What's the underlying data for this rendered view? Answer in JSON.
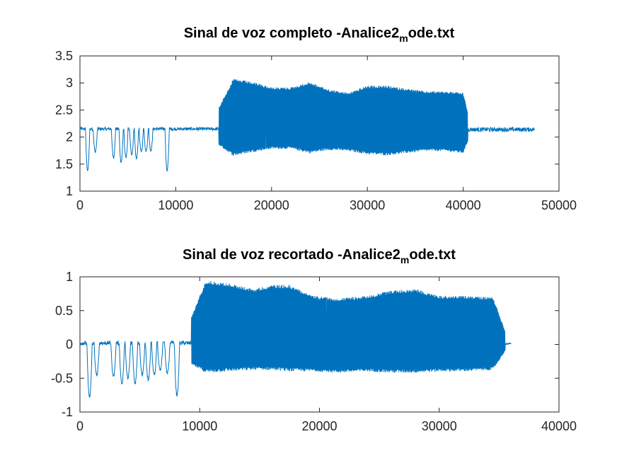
{
  "chart_data": [
    {
      "type": "line",
      "title_main": "Sinal de voz completo -Analice2",
      "title_sub": "m",
      "title_rest": "ode.txt",
      "xlim": [
        0,
        50000
      ],
      "ylim": [
        1,
        3.5
      ],
      "xticks": [
        0,
        10000,
        20000,
        30000,
        40000,
        50000
      ],
      "yticks": [
        1,
        1.5,
        2,
        2.5,
        3,
        3.5
      ],
      "xtick_labels": [
        "0",
        "10000",
        "20000",
        "30000",
        "40000",
        "50000"
      ],
      "ytick_labels": [
        "1",
        "1.5",
        "2",
        "2.5",
        "3",
        "3.5"
      ],
      "grid": false,
      "color": "#0072bd",
      "signal": {
        "x_end": 47500,
        "baseline": 2.15,
        "noise": 0.03,
        "dips": [
          [
            800,
            1.38
          ],
          [
            1600,
            1.72
          ],
          [
            3500,
            1.62
          ],
          [
            4300,
            1.53
          ],
          [
            4800,
            1.62
          ],
          [
            5400,
            1.68
          ],
          [
            5900,
            1.6
          ],
          [
            6400,
            1.72
          ],
          [
            6900,
            1.74
          ],
          [
            7400,
            1.75
          ],
          [
            9100,
            1.38
          ]
        ],
        "burst_start": 14500,
        "burst_end": 40500,
        "burst_envelope": [
          [
            14500,
            2.55,
            1.85
          ],
          [
            16000,
            3.08,
            1.65
          ],
          [
            18000,
            3.02,
            1.72
          ],
          [
            20000,
            2.92,
            1.78
          ],
          [
            22000,
            2.92,
            1.78
          ],
          [
            24000,
            3.02,
            1.7
          ],
          [
            26000,
            2.88,
            1.76
          ],
          [
            28000,
            2.82,
            1.74
          ],
          [
            30000,
            2.95,
            1.68
          ],
          [
            32000,
            2.95,
            1.66
          ],
          [
            34000,
            2.9,
            1.7
          ],
          [
            36000,
            2.85,
            1.74
          ],
          [
            38000,
            2.85,
            1.74
          ],
          [
            40000,
            2.82,
            1.7
          ],
          [
            40500,
            2.45,
            1.92
          ]
        ],
        "tail_end": 47500,
        "tail_baseline": 2.14,
        "tail_noise": 0.04
      }
    },
    {
      "type": "line",
      "title_main": "Sinal de voz recortado -Analice2",
      "title_sub": "m",
      "title_rest": "ode.txt",
      "xlim": [
        0,
        40000
      ],
      "ylim": [
        -1,
        1
      ],
      "xticks": [
        0,
        10000,
        20000,
        30000,
        40000
      ],
      "yticks": [
        -1,
        -0.5,
        0,
        0.5,
        1
      ],
      "xtick_labels": [
        "0",
        "10000",
        "20000",
        "30000",
        "40000"
      ],
      "ytick_labels": [
        "-1",
        "-0.5",
        "0",
        "0.5",
        "1"
      ],
      "grid": false,
      "color": "#0072bd",
      "signal": {
        "x_end": 36000,
        "baseline": 0.02,
        "noise": 0.03,
        "dips": [
          [
            800,
            -0.78
          ],
          [
            1400,
            -0.45
          ],
          [
            2800,
            -0.48
          ],
          [
            3500,
            -0.58
          ],
          [
            4000,
            -0.5
          ],
          [
            4600,
            -0.58
          ],
          [
            5200,
            -0.45
          ],
          [
            5700,
            -0.52
          ],
          [
            6200,
            -0.45
          ],
          [
            6700,
            -0.38
          ],
          [
            7300,
            -0.42
          ],
          [
            8100,
            -0.76
          ]
        ],
        "burst_start": 9300,
        "burst_end": 35500,
        "burst_envelope": [
          [
            9300,
            0.4,
            -0.3
          ],
          [
            10500,
            0.95,
            -0.42
          ],
          [
            12500,
            0.9,
            -0.4
          ],
          [
            14500,
            0.82,
            -0.38
          ],
          [
            16000,
            0.88,
            -0.38
          ],
          [
            17500,
            0.88,
            -0.4
          ],
          [
            19500,
            0.72,
            -0.4
          ],
          [
            21500,
            0.68,
            -0.42
          ],
          [
            24000,
            0.72,
            -0.4
          ],
          [
            26000,
            0.8,
            -0.42
          ],
          [
            28000,
            0.82,
            -0.42
          ],
          [
            30000,
            0.72,
            -0.4
          ],
          [
            32000,
            0.72,
            -0.4
          ],
          [
            34500,
            0.7,
            -0.38
          ],
          [
            35500,
            0.2,
            -0.1
          ]
        ],
        "tail_end": 36000,
        "tail_baseline": 0.01,
        "tail_noise": 0.01
      }
    }
  ]
}
